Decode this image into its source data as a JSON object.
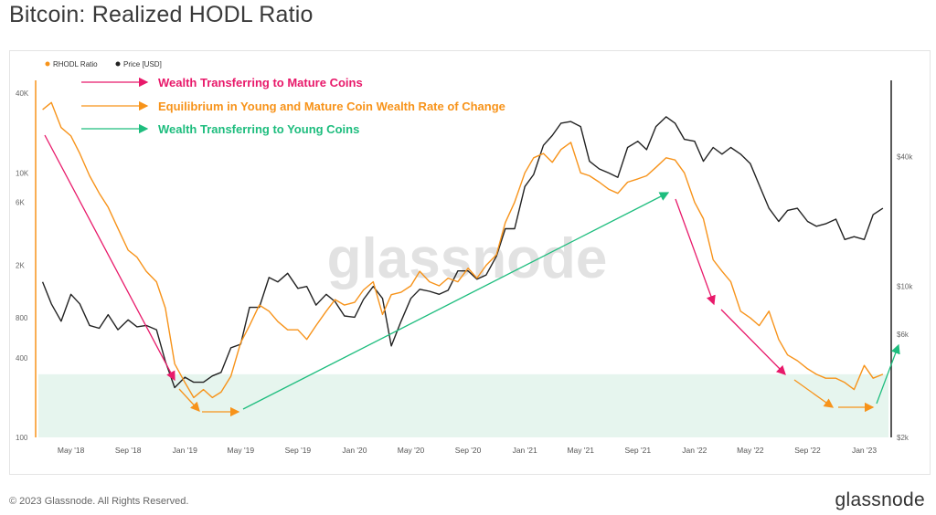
{
  "page": {
    "title": "Bitcoin: Realized HODL Ratio",
    "copyright": "© 2023 Glassnode. All Rights Reserved.",
    "logo": "glassnode"
  },
  "colors": {
    "rhodl": "#f7931a",
    "price": "#222222",
    "upper_band": "#fde2e4",
    "lower_band": "#e6f5ee",
    "pink_arrow": "#e8196a",
    "orange_arrow": "#f7931a",
    "green_arrow": "#1ebd7e"
  },
  "chart_data": {
    "type": "line",
    "title": "Bitcoin: Realized HODL Ratio",
    "legend": {
      "placement": "top-left",
      "entries": [
        "RHODL Ratio",
        "Price [USD]"
      ]
    },
    "watermark": "glassnode",
    "x_ticks": [
      "May '18",
      "Sep '18",
      "Jan '19",
      "May '19",
      "Sep '19",
      "Jan '20",
      "May '20",
      "Sep '20",
      "Jan '21",
      "May '21",
      "Sep '21",
      "Jan '22",
      "May '22",
      "Sep '22",
      "Jan '23"
    ],
    "left_axis": {
      "scale": "log",
      "ylim": [
        100,
        50000
      ],
      "ticks": [
        "100",
        "400",
        "800",
        "2K",
        "6K",
        "10K",
        "40K"
      ]
    },
    "right_axis": {
      "scale": "log",
      "ylim": [
        2000,
        90000
      ],
      "ticks": [
        "$2k",
        "$6k",
        "$10k",
        "$40k"
      ]
    },
    "bands": [
      {
        "name": "upper",
        "from": 50000,
        "to": 100000
      },
      {
        "name": "lower",
        "from": 100,
        "to": 300
      }
    ],
    "annotations": [
      {
        "text": "Wealth Transferring to Mature Coins",
        "color": "pink"
      },
      {
        "text": "Equilibrium in Young and Mature Coin Wealth Rate of Change",
        "color": "orange"
      },
      {
        "text": "Wealth Transferring to Young Coins",
        "color": "green"
      }
    ],
    "series": [
      {
        "name": "RHODL Ratio",
        "axis": "left",
        "x": [
          "2018-03-01",
          "2018-03-20",
          "2018-04-10",
          "2018-05-01",
          "2018-05-20",
          "2018-06-10",
          "2018-07-01",
          "2018-07-20",
          "2018-08-10",
          "2018-09-01",
          "2018-09-20",
          "2018-10-10",
          "2018-11-01",
          "2018-11-20",
          "2018-12-10",
          "2019-01-01",
          "2019-01-20",
          "2019-02-10",
          "2019-03-01",
          "2019-03-20",
          "2019-04-10",
          "2019-05-01",
          "2019-05-20",
          "2019-06-10",
          "2019-07-01",
          "2019-07-20",
          "2019-08-10",
          "2019-09-01",
          "2019-09-20",
          "2019-10-10",
          "2019-11-01",
          "2019-11-20",
          "2019-12-10",
          "2020-01-01",
          "2020-01-20",
          "2020-02-10",
          "2020-03-01",
          "2020-03-20",
          "2020-04-10",
          "2020-05-01",
          "2020-05-20",
          "2020-06-10",
          "2020-07-01",
          "2020-07-20",
          "2020-08-10",
          "2020-09-01",
          "2020-09-20",
          "2020-10-10",
          "2020-11-01",
          "2020-11-20",
          "2020-12-10",
          "2021-01-01",
          "2021-01-20",
          "2021-02-10",
          "2021-03-01",
          "2021-03-20",
          "2021-04-10",
          "2021-05-01",
          "2021-05-20",
          "2021-06-10",
          "2021-07-01",
          "2021-07-20",
          "2021-08-10",
          "2021-09-01",
          "2021-09-20",
          "2021-10-10",
          "2021-11-01",
          "2021-11-20",
          "2021-12-10",
          "2022-01-01",
          "2022-01-20",
          "2022-02-10",
          "2022-03-01",
          "2022-03-20",
          "2022-04-10",
          "2022-05-01",
          "2022-05-20",
          "2022-06-10",
          "2022-07-01",
          "2022-07-20",
          "2022-08-10",
          "2022-09-01",
          "2022-09-20",
          "2022-10-10",
          "2022-11-01",
          "2022-11-20",
          "2022-12-10",
          "2023-01-01",
          "2023-01-20",
          "2023-02-10"
        ],
        "values": [
          30000,
          34000,
          22000,
          19000,
          14000,
          9500,
          7000,
          5500,
          3800,
          2600,
          2300,
          1800,
          1500,
          950,
          360,
          260,
          200,
          230,
          200,
          220,
          290,
          520,
          700,
          1000,
          900,
          750,
          650,
          650,
          550,
          700,
          900,
          1100,
          1000,
          1050,
          1300,
          1500,
          850,
          1200,
          1250,
          1400,
          1800,
          1500,
          1400,
          1600,
          1500,
          1900,
          1600,
          2000,
          2400,
          4200,
          6000,
          10000,
          13000,
          14000,
          12000,
          15000,
          17000,
          10000,
          9500,
          8500,
          7500,
          7000,
          8500,
          9000,
          9500,
          11000,
          13000,
          12500,
          10000,
          6000,
          4500,
          2200,
          1800,
          1500,
          900,
          800,
          700,
          900,
          550,
          420,
          380,
          330,
          300,
          280,
          280,
          260,
          230,
          350,
          280,
          300
        ]
      },
      {
        "name": "Price [USD]",
        "axis": "right",
        "x": [
          "2018-03-01",
          "2018-03-20",
          "2018-04-10",
          "2018-05-01",
          "2018-05-20",
          "2018-06-10",
          "2018-07-01",
          "2018-07-20",
          "2018-08-10",
          "2018-09-01",
          "2018-09-20",
          "2018-10-10",
          "2018-11-01",
          "2018-11-20",
          "2018-12-10",
          "2019-01-01",
          "2019-01-20",
          "2019-02-10",
          "2019-03-01",
          "2019-03-20",
          "2019-04-10",
          "2019-05-01",
          "2019-05-20",
          "2019-06-10",
          "2019-07-01",
          "2019-07-20",
          "2019-08-10",
          "2019-09-01",
          "2019-09-20",
          "2019-10-10",
          "2019-11-01",
          "2019-11-20",
          "2019-12-10",
          "2020-01-01",
          "2020-01-20",
          "2020-02-10",
          "2020-03-01",
          "2020-03-20",
          "2020-04-10",
          "2020-05-01",
          "2020-05-20",
          "2020-06-10",
          "2020-07-01",
          "2020-07-20",
          "2020-08-10",
          "2020-09-01",
          "2020-09-20",
          "2020-10-10",
          "2020-11-01",
          "2020-11-20",
          "2020-12-10",
          "2021-01-01",
          "2021-01-20",
          "2021-02-10",
          "2021-03-01",
          "2021-03-20",
          "2021-04-10",
          "2021-05-01",
          "2021-05-20",
          "2021-06-10",
          "2021-07-01",
          "2021-07-20",
          "2021-08-10",
          "2021-09-01",
          "2021-09-20",
          "2021-10-10",
          "2021-11-01",
          "2021-11-20",
          "2021-12-10",
          "2022-01-01",
          "2022-01-20",
          "2022-02-10",
          "2022-03-01",
          "2022-03-20",
          "2022-04-10",
          "2022-05-01",
          "2022-05-20",
          "2022-06-10",
          "2022-07-01",
          "2022-07-20",
          "2022-08-10",
          "2022-09-01",
          "2022-09-20",
          "2022-10-10",
          "2022-11-01",
          "2022-11-20",
          "2022-12-10",
          "2023-01-01",
          "2023-01-20",
          "2023-02-10"
        ],
        "values": [
          10500,
          8300,
          6900,
          9200,
          8300,
          6600,
          6400,
          7400,
          6300,
          7000,
          6500,
          6600,
          6300,
          4500,
          3400,
          3800,
          3600,
          3600,
          3850,
          4000,
          5200,
          5400,
          8000,
          8000,
          11000,
          10500,
          11500,
          9800,
          10000,
          8200,
          9200,
          8500,
          7300,
          7200,
          8700,
          10000,
          8800,
          5300,
          6900,
          8800,
          9700,
          9500,
          9200,
          9600,
          11800,
          11800,
          10800,
          11300,
          13800,
          18500,
          18500,
          29000,
          33000,
          45000,
          50000,
          57000,
          58000,
          55000,
          38000,
          35000,
          33500,
          32000,
          44000,
          47000,
          43000,
          55000,
          61000,
          57000,
          48000,
          47000,
          38000,
          44000,
          41000,
          44000,
          41000,
          37000,
          29500,
          23000,
          20000,
          22500,
          23000,
          20000,
          19000,
          19500,
          20500,
          16500,
          17000,
          16500,
          21500,
          23000
        ]
      }
    ]
  }
}
